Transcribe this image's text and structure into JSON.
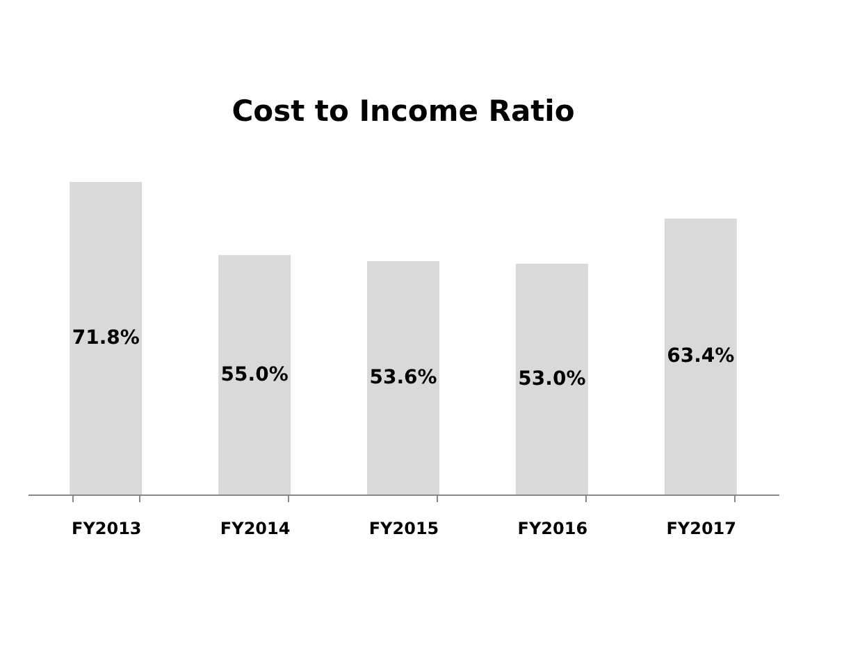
{
  "chart_data": {
    "type": "bar",
    "title": "Cost to Income Ratio",
    "categories": [
      "FY2013",
      "FY2014",
      "FY2015",
      "FY2016",
      "FY2017"
    ],
    "values": [
      71.8,
      55.0,
      53.6,
      53.0,
      63.4
    ],
    "value_labels": [
      "71.8%",
      "55.0%",
      "53.6%",
      "53.0%",
      "63.4%"
    ],
    "color": "#d9d9d9",
    "grid": false
  }
}
